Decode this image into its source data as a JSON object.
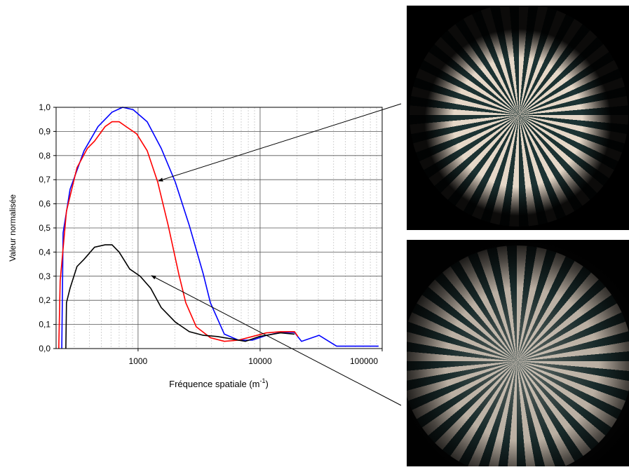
{
  "chart_data": {
    "type": "line",
    "y_label": "Valeur normalisée",
    "x_label": [
      "Fréquence spatiale (m",
      "-1",
      ")"
    ],
    "log_x": true,
    "grid": true,
    "minor_grid": true,
    "xlim": [
      213,
      100000
    ],
    "ylim": [
      0,
      1
    ],
    "xticks": [
      1000,
      10000,
      100000
    ],
    "yticks": [
      {
        "value": 0,
        "label": "0,0"
      },
      {
        "value": 0.1,
        "label": "0,1"
      },
      {
        "value": 0.2,
        "label": "0,2"
      },
      {
        "value": 0.3,
        "label": "0,3"
      },
      {
        "value": 0.4,
        "label": "0,4"
      },
      {
        "value": 0.5,
        "label": "0,5"
      },
      {
        "value": 0.6,
        "label": "0,6"
      },
      {
        "value": 0.7,
        "label": "0,7"
      },
      {
        "value": 0.8,
        "label": "0,8"
      },
      {
        "value": 0.9,
        "label": "0,9"
      },
      {
        "value": 1,
        "label": "1,0"
      }
    ],
    "series": [
      {
        "color": "#0000ff",
        "x": [
          237,
          243,
          277,
          361,
          470,
          612,
          748,
          911,
          1188,
          1548,
          2018,
          2630,
          3420,
          3910,
          5090,
          6640,
          8650,
          11270,
          14690,
          19140,
          21850,
          30400,
          42300,
          93500
        ],
        "values": [
          0,
          0.48,
          0.66,
          0.82,
          0.92,
          0.98,
          1.0,
          0.99,
          0.94,
          0.83,
          0.69,
          0.51,
          0.31,
          0.19,
          0.06,
          0.035,
          0.035,
          0.055,
          0.067,
          0.067,
          0.03,
          0.055,
          0.01,
          0.01
        ]
      },
      {
        "color": "#ff0000",
        "x": [
          224,
          230,
          259,
          316,
          385,
          440,
          537,
          612,
          700,
          798,
          974,
          1188,
          1448,
          1766,
          2153,
          2460,
          3000,
          3910,
          5090,
          6640,
          8650,
          11270,
          14690,
          19140,
          20420
        ],
        "values": [
          0,
          0.28,
          0.57,
          0.75,
          0.83,
          0.86,
          0.92,
          0.94,
          0.94,
          0.92,
          0.89,
          0.82,
          0.69,
          0.51,
          0.31,
          0.19,
          0.09,
          0.045,
          0.03,
          0.035,
          0.05,
          0.065,
          0.07,
          0.07,
          0.05
        ]
      },
      {
        "color": "#000000",
        "x": [
          256,
          259,
          277,
          316,
          361,
          440,
          537,
          612,
          700,
          853,
          1041,
          1269,
          1548,
          2018,
          2630,
          3420,
          4460,
          5810,
          7570,
          9860,
          14690,
          19140
        ],
        "values": [
          0,
          0.19,
          0.25,
          0.34,
          0.37,
          0.42,
          0.43,
          0.43,
          0.4,
          0.33,
          0.3,
          0.25,
          0.17,
          0.11,
          0.07,
          0.055,
          0.05,
          0.04,
          0.03,
          0.05,
          0.065,
          0.06
        ]
      }
    ]
  }
}
